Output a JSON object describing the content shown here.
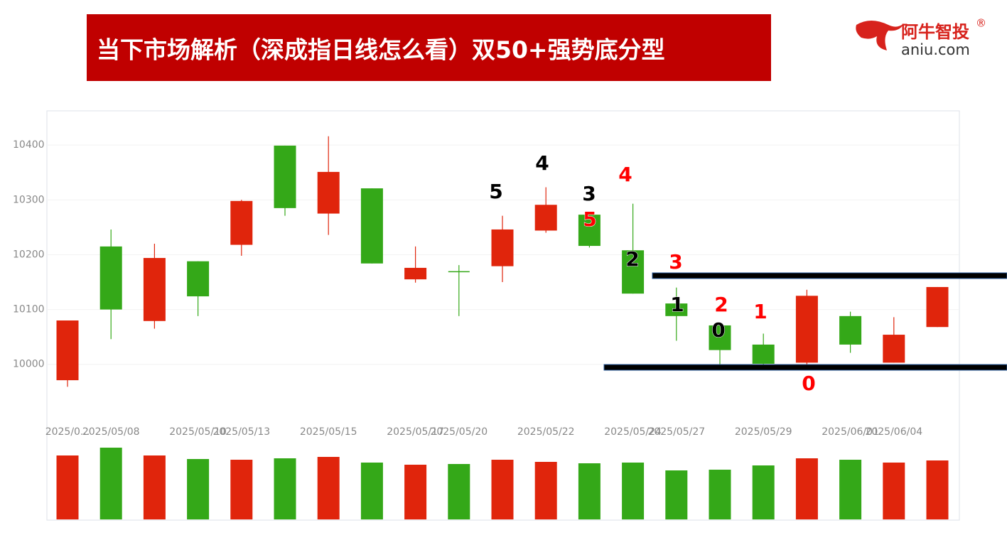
{
  "header": {
    "title": "当下市场解析（深成指日线怎么看）双50+强势底分型",
    "logo": "阿牛智投",
    "logo_mark": "®",
    "logo_site": "aniu.com"
  },
  "chart_data": [
    {
      "type": "candlestick",
      "categories": [
        "2025/0...",
        "2025/05/08",
        null,
        "2025/05/10",
        "2025/05/13",
        null,
        "2025/05/15",
        null,
        "2025/05/17",
        "2025/05/20",
        null,
        "2025/05/22",
        null,
        "2025/05/24",
        "2025/05/27",
        null,
        "2025/05/29",
        null,
        "2025/06/01",
        "2025/06/04",
        null
      ],
      "open": [
        9971,
        10215,
        10079,
        10188,
        10218,
        10399,
        10275,
        10321,
        10155,
        10169,
        10179,
        10244,
        10273,
        10208,
        10111,
        10071,
        10036,
        10003,
        10088,
        10003,
        10068
      ],
      "high": [
        10080,
        10246,
        10220,
        10188,
        10300,
        10399,
        10416,
        10321,
        10215,
        10181,
        10271,
        10323,
        10275,
        10293,
        10140,
        10071,
        10056,
        10136,
        10096,
        10086,
        10141
      ],
      "low": [
        9959,
        10046,
        10065,
        10088,
        10198,
        10271,
        10236,
        10184,
        10149,
        10088,
        10150,
        10240,
        10213,
        10129,
        10043,
        9994,
        9995,
        10000,
        10021,
        10003,
        10068
      ],
      "close": [
        10080,
        10100,
        10194,
        10124,
        10298,
        10285,
        10351,
        10184,
        10176,
        10169,
        10246,
        10291,
        10216,
        10129,
        10088,
        10026,
        10001,
        10125,
        10036,
        10054,
        10141
      ],
      "up_color": "#e0250c",
      "down_color": "#34a818",
      "ylim": [
        9870,
        10465
      ],
      "yticks": [
        10000,
        10100,
        10200,
        10300,
        10400
      ],
      "grid": true,
      "annotations": [
        {
          "text": "5",
          "color": "#000000"
        },
        {
          "text": "4",
          "color": "#000000"
        },
        {
          "text": "3",
          "color": "#000000"
        },
        {
          "text": "5",
          "color": "#ff0000"
        },
        {
          "text": "4",
          "color": "#ff0000"
        },
        {
          "text": "2",
          "color": "#000000"
        },
        {
          "text": "3",
          "color": "#ff0000"
        },
        {
          "text": "1",
          "color": "#000000"
        },
        {
          "text": "2",
          "color": "#ff0000"
        },
        {
          "text": "0",
          "color": "#000000"
        },
        {
          "text": "1",
          "color": "#ff0000"
        },
        {
          "text": "0",
          "color": "#ff0000"
        }
      ]
    },
    {
      "type": "bar",
      "values": [
        90,
        101,
        90,
        85,
        84,
        86,
        88,
        80,
        77,
        78,
        84,
        81,
        79,
        80,
        69,
        70,
        76,
        86,
        84,
        80,
        83
      ],
      "ylim": [
        0,
        110
      ]
    }
  ]
}
